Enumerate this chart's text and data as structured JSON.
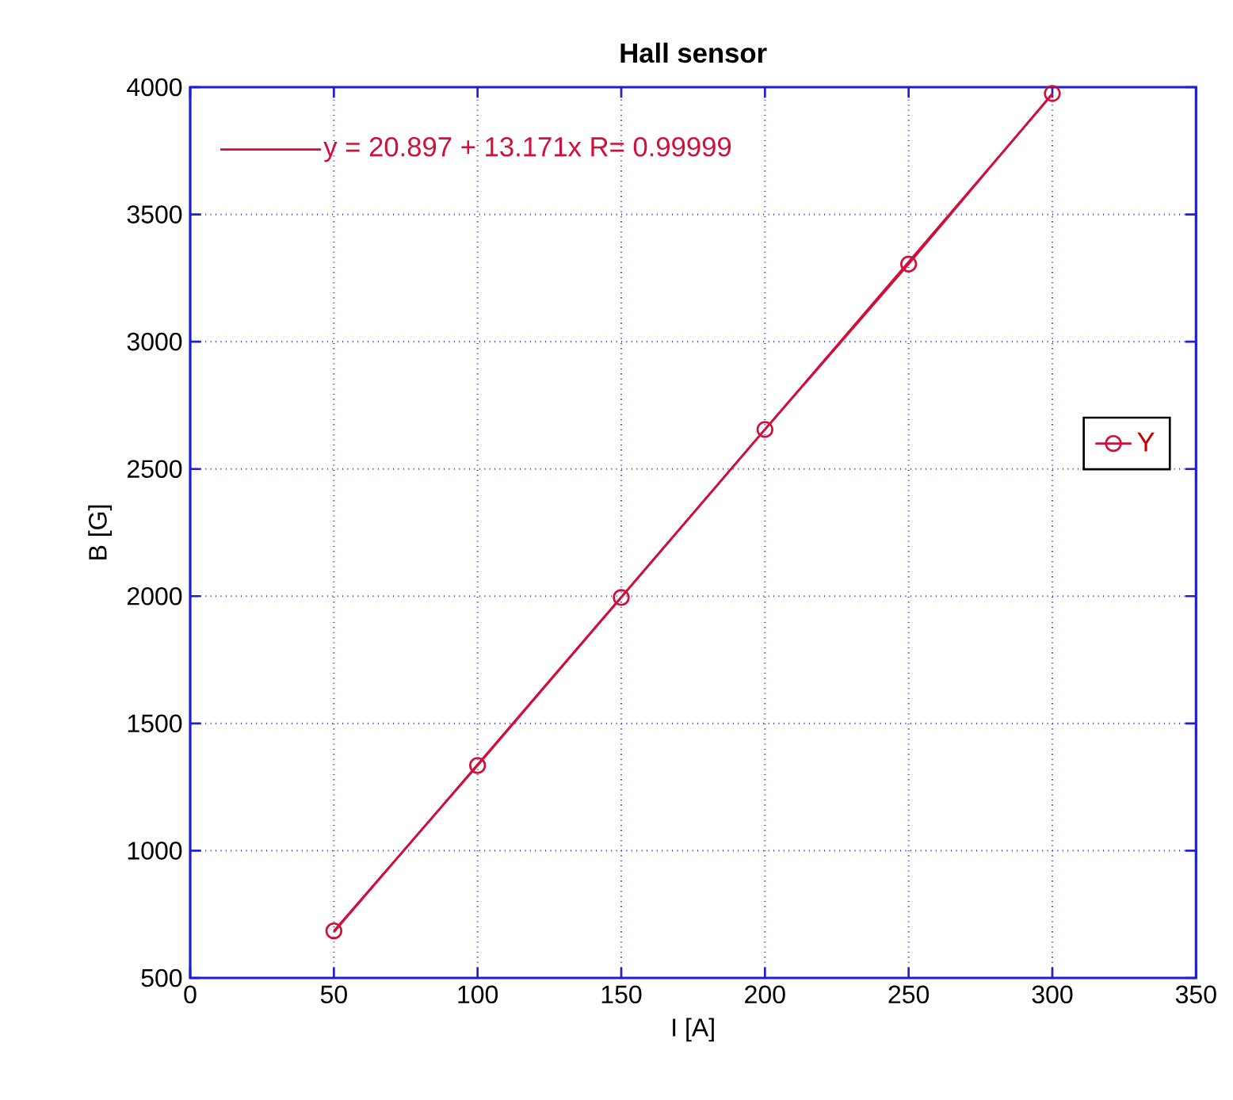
{
  "chart_data": {
    "type": "line",
    "title": "Hall sensor",
    "xlabel": "I [A]",
    "ylabel": "B [G]",
    "x": [
      50,
      100,
      150,
      200,
      250,
      300
    ],
    "series": [
      {
        "name": "Y",
        "color": "#d0103a",
        "values": [
          685,
          1335,
          1995,
          2655,
          3305,
          3975
        ],
        "marker": "circle"
      },
      {
        "name": "y = 20.897 + 13.171x   R= 0.99999",
        "color": "#d0103a",
        "type": "line",
        "x": [
          50,
          300
        ],
        "values": [
          680,
          3972
        ],
        "marker": "none"
      }
    ],
    "xlim": [
      0,
      350
    ],
    "ylim": [
      500,
      4000
    ],
    "xticks": [
      0,
      50,
      100,
      150,
      200,
      250,
      300,
      350
    ],
    "yticks": [
      500,
      1000,
      1500,
      2000,
      2500,
      3000,
      3500,
      4000
    ],
    "grid": true,
    "legend": "right",
    "line_style": "solid"
  }
}
